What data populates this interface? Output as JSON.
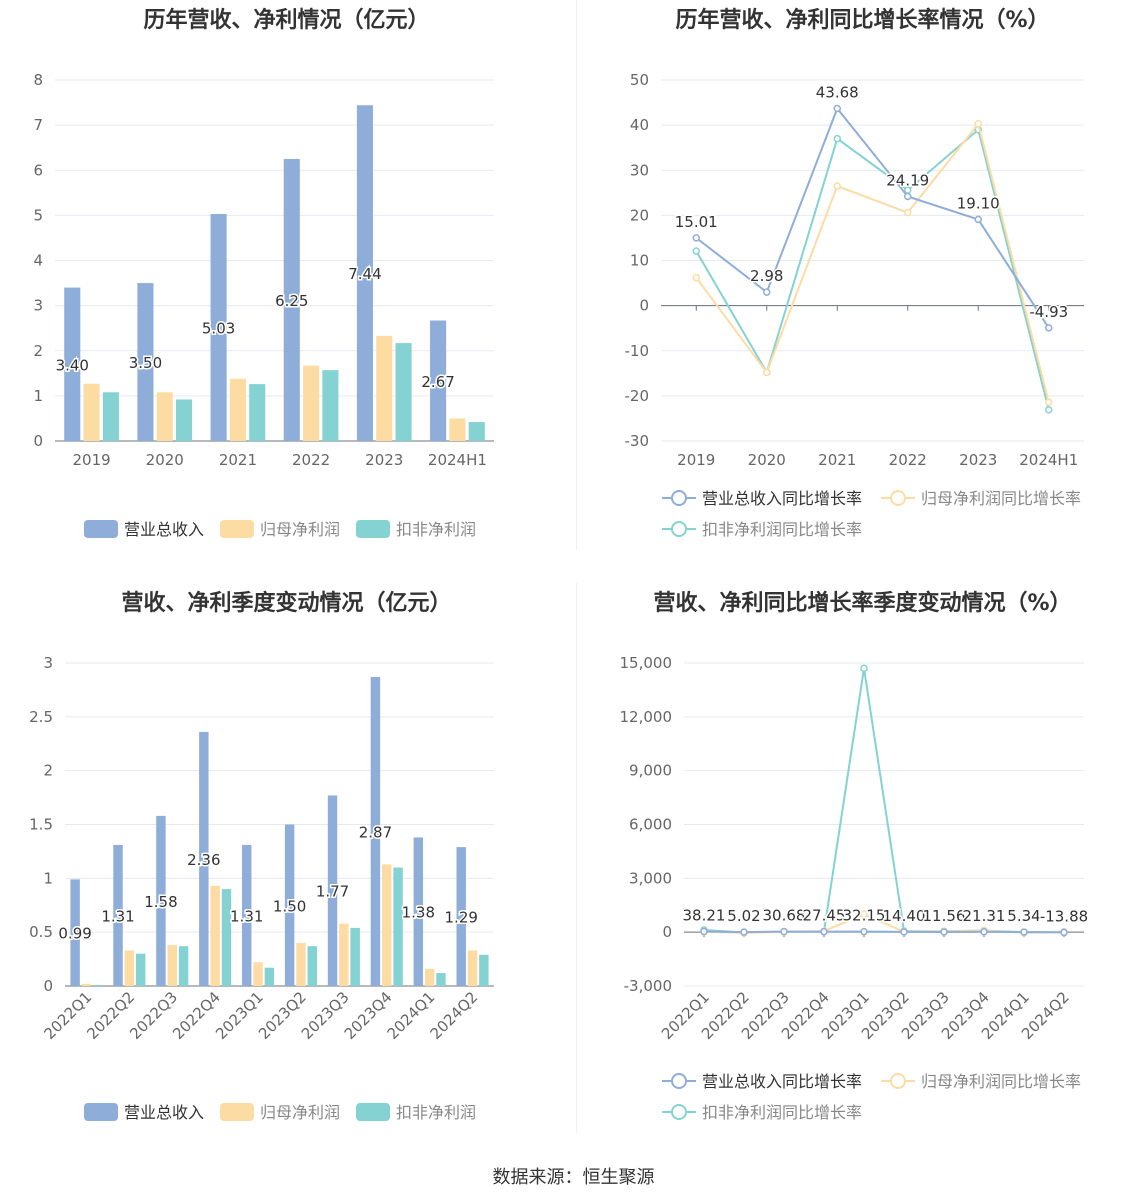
{
  "footer": {
    "source": "数据来源：恒生聚源"
  },
  "colors": {
    "revenue": "#8eadd9",
    "net_profit": "#fddca4",
    "deducted_profit": "#84d2d2"
  },
  "chart_data": [
    {
      "id": "annual-bar",
      "type": "bar",
      "title": "历年营收、净利情况（亿元）",
      "categories": [
        "2019",
        "2020",
        "2021",
        "2022",
        "2023",
        "2024H1"
      ],
      "ylim": [
        0,
        8
      ],
      "yticks": [
        "0",
        "1",
        "2",
        "3",
        "4",
        "5",
        "6",
        "7",
        "8"
      ],
      "grid": true,
      "legend_position": "bottom",
      "label_series": 0,
      "series": [
        {
          "name": "营业总收入",
          "values": [
            3.4,
            3.5,
            5.03,
            6.25,
            7.44,
            2.67
          ],
          "labels": [
            "3.40",
            "3.50",
            "5.03",
            "6.25",
            "7.44",
            "2.67"
          ]
        },
        {
          "name": "归母净利润",
          "values": [
            1.27,
            1.08,
            1.38,
            1.67,
            2.33,
            0.5
          ]
        },
        {
          "name": "扣非净利润",
          "values": [
            1.08,
            0.92,
            1.26,
            1.57,
            2.17,
            0.42
          ]
        }
      ]
    },
    {
      "id": "annual-line",
      "type": "line",
      "title": "历年营收、净利同比增长率情况（%）",
      "categories": [
        "2019",
        "2020",
        "2021",
        "2022",
        "2023",
        "2024H1"
      ],
      "ylim": [
        -30,
        50
      ],
      "yticks": [
        "-30",
        "-20",
        "-10",
        "0",
        "10",
        "20",
        "30",
        "40",
        "50"
      ],
      "grid": true,
      "legend_position": "bottom",
      "label_series": 0,
      "series": [
        {
          "name": "营业总收入同比增长率",
          "values": [
            15.01,
            2.98,
            43.68,
            24.19,
            19.1,
            -4.93
          ],
          "labels": [
            "15.01",
            "2.98",
            "43.68",
            "24.19",
            "19.10",
            "-4.93"
          ]
        },
        {
          "name": "归母净利润同比增长率",
          "values": [
            6.2,
            -14.8,
            26.5,
            20.6,
            40.3,
            -21.4
          ]
        },
        {
          "name": "扣非净利润同比增长率",
          "values": [
            12.1,
            -14.8,
            37.0,
            25.6,
            39.0,
            -23.1
          ]
        }
      ]
    },
    {
      "id": "quarterly-bar",
      "type": "bar",
      "title": "营收、净利季度变动情况（亿元）",
      "categories": [
        "2022Q1",
        "2022Q2",
        "2022Q3",
        "2022Q4",
        "2023Q1",
        "2023Q2",
        "2023Q3",
        "2023Q4",
        "2024Q1",
        "2024Q2"
      ],
      "ylim": [
        0,
        3
      ],
      "yticks": [
        "0",
        "0.5",
        "1",
        "1.5",
        "2",
        "2.5",
        "3"
      ],
      "grid": true,
      "legend_position": "bottom",
      "label_series": 0,
      "series": [
        {
          "name": "营业总收入",
          "values": [
            0.99,
            1.31,
            1.58,
            2.36,
            1.31,
            1.5,
            1.77,
            2.87,
            1.38,
            1.29
          ],
          "labels": [
            "0.99",
            "1.31",
            "1.58",
            "2.36",
            "1.31",
            "1.50",
            "1.77",
            "2.87",
            "1.38",
            "1.29"
          ]
        },
        {
          "name": "归母净利润",
          "values": [
            0.02,
            0.33,
            0.38,
            0.93,
            0.22,
            0.4,
            0.58,
            1.13,
            0.16,
            0.33
          ]
        },
        {
          "name": "扣非净利润",
          "values": [
            0.01,
            0.3,
            0.37,
            0.9,
            0.17,
            0.37,
            0.54,
            1.1,
            0.12,
            0.29
          ]
        }
      ]
    },
    {
      "id": "quarterly-line",
      "type": "line",
      "title": "营收、净利同比增长率季度变动情况（%）",
      "categories": [
        "2022Q1",
        "2022Q2",
        "2022Q3",
        "2022Q4",
        "2023Q1",
        "2023Q2",
        "2023Q3",
        "2023Q4",
        "2024Q1",
        "2024Q2"
      ],
      "ylim": [
        -3000,
        15000
      ],
      "yticks": [
        "-3,000",
        "0",
        "3,000",
        "6,000",
        "9,000",
        "12,000",
        "15,000"
      ],
      "grid": true,
      "legend_position": "bottom",
      "label_series": 0,
      "series": [
        {
          "name": "营业总收入同比增长率",
          "values": [
            38.21,
            5.02,
            30.68,
            27.45,
            32.15,
            14.4,
            11.56,
            21.31,
            5.34,
            -13.88
          ],
          "labels": [
            "38.21",
            "5.02",
            "30.68",
            "27.45",
            "32.15",
            "14.40",
            "11.56",
            "21.31",
            "5.34",
            "-13.88"
          ]
        },
        {
          "name": "归母净利润同比增长率",
          "values": [
            20,
            -40,
            15,
            60,
            1000,
            25,
            45,
            85,
            -30,
            15
          ]
        },
        {
          "name": "扣非净利润同比增长率",
          "values": [
            120,
            -20,
            30,
            40,
            14700,
            60,
            50,
            90,
            -10,
            20
          ]
        }
      ]
    }
  ]
}
